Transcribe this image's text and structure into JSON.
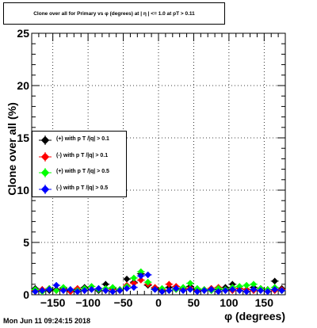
{
  "chart_data": {
    "type": "scatter",
    "title": "Clone  over all for Primary vs φ (degrees) at | η | <= 1.0 at pT > 0.11",
    "xlabel": "φ (degrees)",
    "ylabel": "Clone  over all (%)",
    "xlim": [
      -180,
      180
    ],
    "ylim": [
      0,
      25
    ],
    "x_ticks": [
      "−150",
      "−100",
      "−50",
      "0",
      "50",
      "100",
      "150"
    ],
    "x_tick_values": [
      -150,
      -100,
      -50,
      0,
      50,
      100,
      150
    ],
    "y_ticks": [
      "0",
      "5",
      "10",
      "15",
      "20",
      "25"
    ],
    "y_tick_values": [
      0,
      5,
      10,
      15,
      20,
      25
    ],
    "grid": true,
    "legend_position": "left",
    "series": [
      {
        "name": "(+) with p T /|q| > 0.1",
        "color": "#000000",
        "points": [
          [
            -175,
            0.6
          ],
          [
            -165,
            0.5
          ],
          [
            -155,
            0.4
          ],
          [
            -145,
            0.5
          ],
          [
            -135,
            0.6
          ],
          [
            -125,
            0.4
          ],
          [
            -115,
            0.5
          ],
          [
            -105,
            0.7
          ],
          [
            -95,
            0.5
          ],
          [
            -85,
            0.4
          ],
          [
            -75,
            1.0
          ],
          [
            -65,
            0.6
          ],
          [
            -55,
            0.5
          ],
          [
            -45,
            1.5
          ],
          [
            -35,
            1.2
          ],
          [
            -25,
            2.0
          ],
          [
            -15,
            0.9
          ],
          [
            -5,
            0.6
          ],
          [
            5,
            0.4
          ],
          [
            15,
            0.7
          ],
          [
            25,
            0.5
          ],
          [
            35,
            0.6
          ],
          [
            45,
            0.8
          ],
          [
            55,
            0.5
          ],
          [
            65,
            0.4
          ],
          [
            75,
            0.6
          ],
          [
            85,
            0.5
          ],
          [
            95,
            0.7
          ],
          [
            105,
            1.0
          ],
          [
            115,
            0.6
          ],
          [
            125,
            0.5
          ],
          [
            135,
            0.7
          ],
          [
            145,
            0.6
          ],
          [
            155,
            0.5
          ],
          [
            165,
            1.3
          ],
          [
            175,
            0.6
          ]
        ]
      },
      {
        "name": "(-) with p T /|q| > 0.1",
        "color": "#ff0000",
        "points": [
          [
            -175,
            0.4
          ],
          [
            -165,
            0.5
          ],
          [
            -155,
            0.6
          ],
          [
            -145,
            0.4
          ],
          [
            -135,
            0.5
          ],
          [
            -125,
            0.3
          ],
          [
            -115,
            0.6
          ],
          [
            -105,
            0.4
          ],
          [
            -95,
            0.5
          ],
          [
            -85,
            0.6
          ],
          [
            -75,
            0.4
          ],
          [
            -65,
            0.5
          ],
          [
            -55,
            0.4
          ],
          [
            -45,
            0.9
          ],
          [
            -35,
            1.1
          ],
          [
            -25,
            1.4
          ],
          [
            -15,
            1.0
          ],
          [
            -5,
            0.7
          ],
          [
            5,
            0.5
          ],
          [
            15,
            1.0
          ],
          [
            25,
            0.8
          ],
          [
            35,
            0.5
          ],
          [
            45,
            0.6
          ],
          [
            55,
            0.4
          ],
          [
            65,
            0.5
          ],
          [
            75,
            0.6
          ],
          [
            85,
            0.7
          ],
          [
            95,
            0.5
          ],
          [
            105,
            0.4
          ],
          [
            115,
            0.6
          ],
          [
            125,
            0.5
          ],
          [
            135,
            0.4
          ],
          [
            145,
            0.6
          ],
          [
            155,
            0.5
          ],
          [
            165,
            0.4
          ],
          [
            175,
            0.5
          ]
        ]
      },
      {
        "name": "(+) with p T /|q| > 0.5",
        "color": "#00ff00",
        "points": [
          [
            -175,
            0.5
          ],
          [
            -165,
            0.3
          ],
          [
            -155,
            0.6
          ],
          [
            -145,
            0.4
          ],
          [
            -135,
            0.7
          ],
          [
            -125,
            0.5
          ],
          [
            -115,
            0.4
          ],
          [
            -105,
            0.6
          ],
          [
            -95,
            0.8
          ],
          [
            -85,
            0.5
          ],
          [
            -75,
            0.6
          ],
          [
            -65,
            0.7
          ],
          [
            -55,
            0.5
          ],
          [
            -45,
            0.8
          ],
          [
            -35,
            1.6
          ],
          [
            -25,
            2.2
          ],
          [
            -15,
            1.2
          ],
          [
            -5,
            0.5
          ],
          [
            5,
            0.6
          ],
          [
            15,
            0.4
          ],
          [
            25,
            0.5
          ],
          [
            35,
            0.7
          ],
          [
            45,
            1.1
          ],
          [
            55,
            0.6
          ],
          [
            65,
            0.5
          ],
          [
            75,
            0.4
          ],
          [
            85,
            0.6
          ],
          [
            95,
            0.5
          ],
          [
            105,
            0.7
          ],
          [
            115,
            0.8
          ],
          [
            125,
            0.9
          ],
          [
            135,
            1.0
          ],
          [
            145,
            0.6
          ],
          [
            155,
            0.5
          ],
          [
            165,
            0.7
          ],
          [
            175,
            0.4
          ]
        ]
      },
      {
        "name": "(-) with p T /|q| > 0.5",
        "color": "#0000ff",
        "points": [
          [
            -175,
            0.3
          ],
          [
            -165,
            0.4
          ],
          [
            -155,
            0.5
          ],
          [
            -145,
            0.9
          ],
          [
            -135,
            0.4
          ],
          [
            -125,
            0.5
          ],
          [
            -115,
            0.3
          ],
          [
            -105,
            0.4
          ],
          [
            -95,
            0.5
          ],
          [
            -85,
            0.6
          ],
          [
            -75,
            0.4
          ],
          [
            -65,
            0.3
          ],
          [
            -55,
            0.4
          ],
          [
            -45,
            0.6
          ],
          [
            -35,
            0.7
          ],
          [
            -25,
            1.8
          ],
          [
            -15,
            1.9
          ],
          [
            -5,
            0.5
          ],
          [
            5,
            0.3
          ],
          [
            15,
            0.4
          ],
          [
            25,
            0.6
          ],
          [
            35,
            0.4
          ],
          [
            45,
            0.5
          ],
          [
            55,
            0.3
          ],
          [
            65,
            0.4
          ],
          [
            75,
            0.5
          ],
          [
            85,
            0.3
          ],
          [
            95,
            0.4
          ],
          [
            105,
            0.5
          ],
          [
            115,
            0.4
          ],
          [
            125,
            0.3
          ],
          [
            135,
            0.5
          ],
          [
            145,
            0.4
          ],
          [
            155,
            0.3
          ],
          [
            165,
            0.5
          ],
          [
            175,
            0.4
          ]
        ]
      }
    ]
  },
  "timestamp": "Mon Jun 11 09:24:15 2018"
}
